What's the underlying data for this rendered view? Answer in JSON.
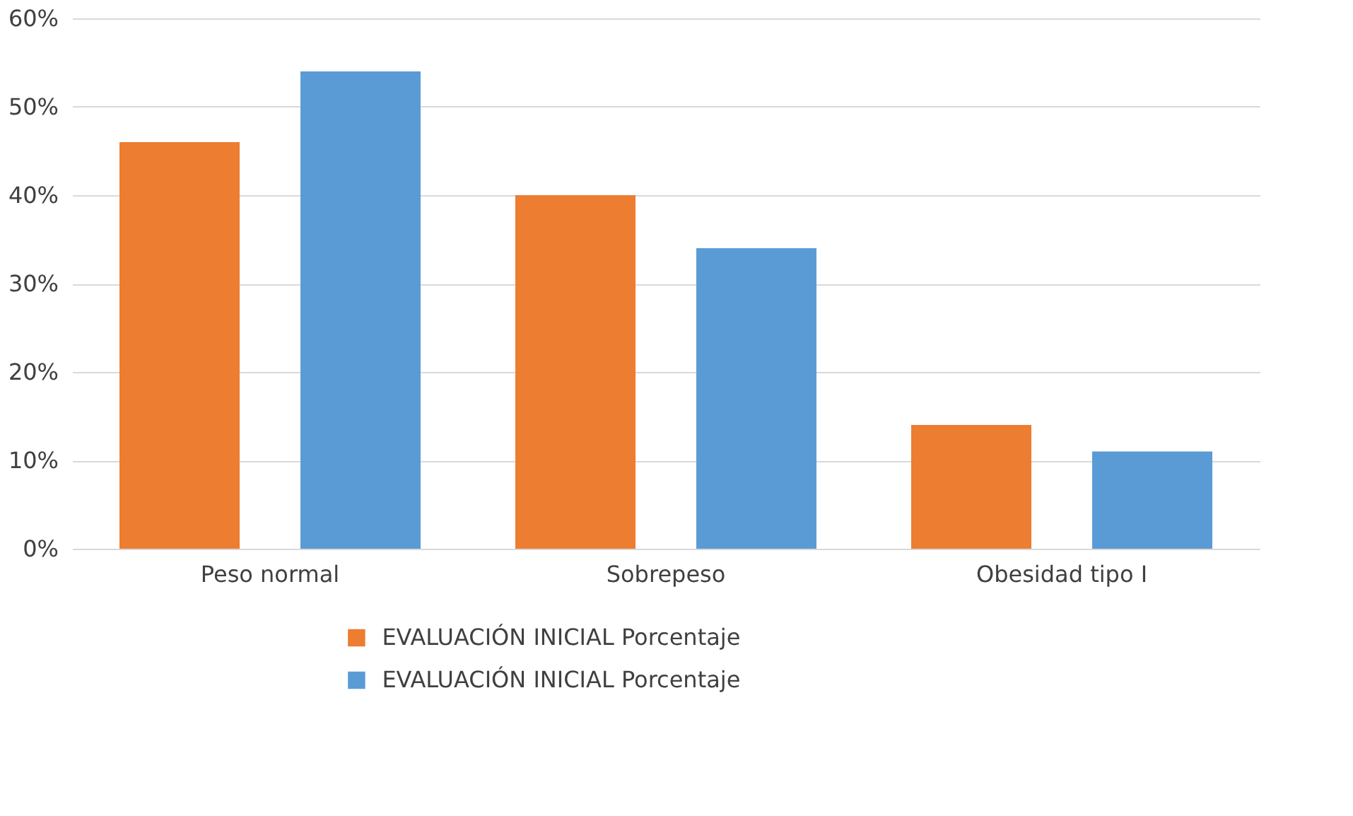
{
  "chart_data": {
    "type": "bar",
    "categories": [
      "Peso normal",
      "Sobrepeso",
      "Obesidad tipo I"
    ],
    "series": [
      {
        "name": "EVALUACIÓN INICIAL Porcentaje",
        "color": "#ed7d31",
        "values": [
          46,
          40,
          14
        ]
      },
      {
        "name": "EVALUACIÓN INICIAL Porcentaje",
        "color": "#5b9bd5",
        "values": [
          54,
          34,
          11
        ]
      }
    ],
    "ylim": [
      0,
      60
    ],
    "yticks": [
      {
        "value": 0,
        "label": "0%"
      },
      {
        "value": 10,
        "label": "10%"
      },
      {
        "value": 20,
        "label": "20%"
      },
      {
        "value": 30,
        "label": "30%"
      },
      {
        "value": 40,
        "label": "40%"
      },
      {
        "value": 50,
        "label": "50%"
      },
      {
        "value": 60,
        "label": "60%"
      }
    ],
    "grid": "y",
    "legend": "bottom"
  }
}
